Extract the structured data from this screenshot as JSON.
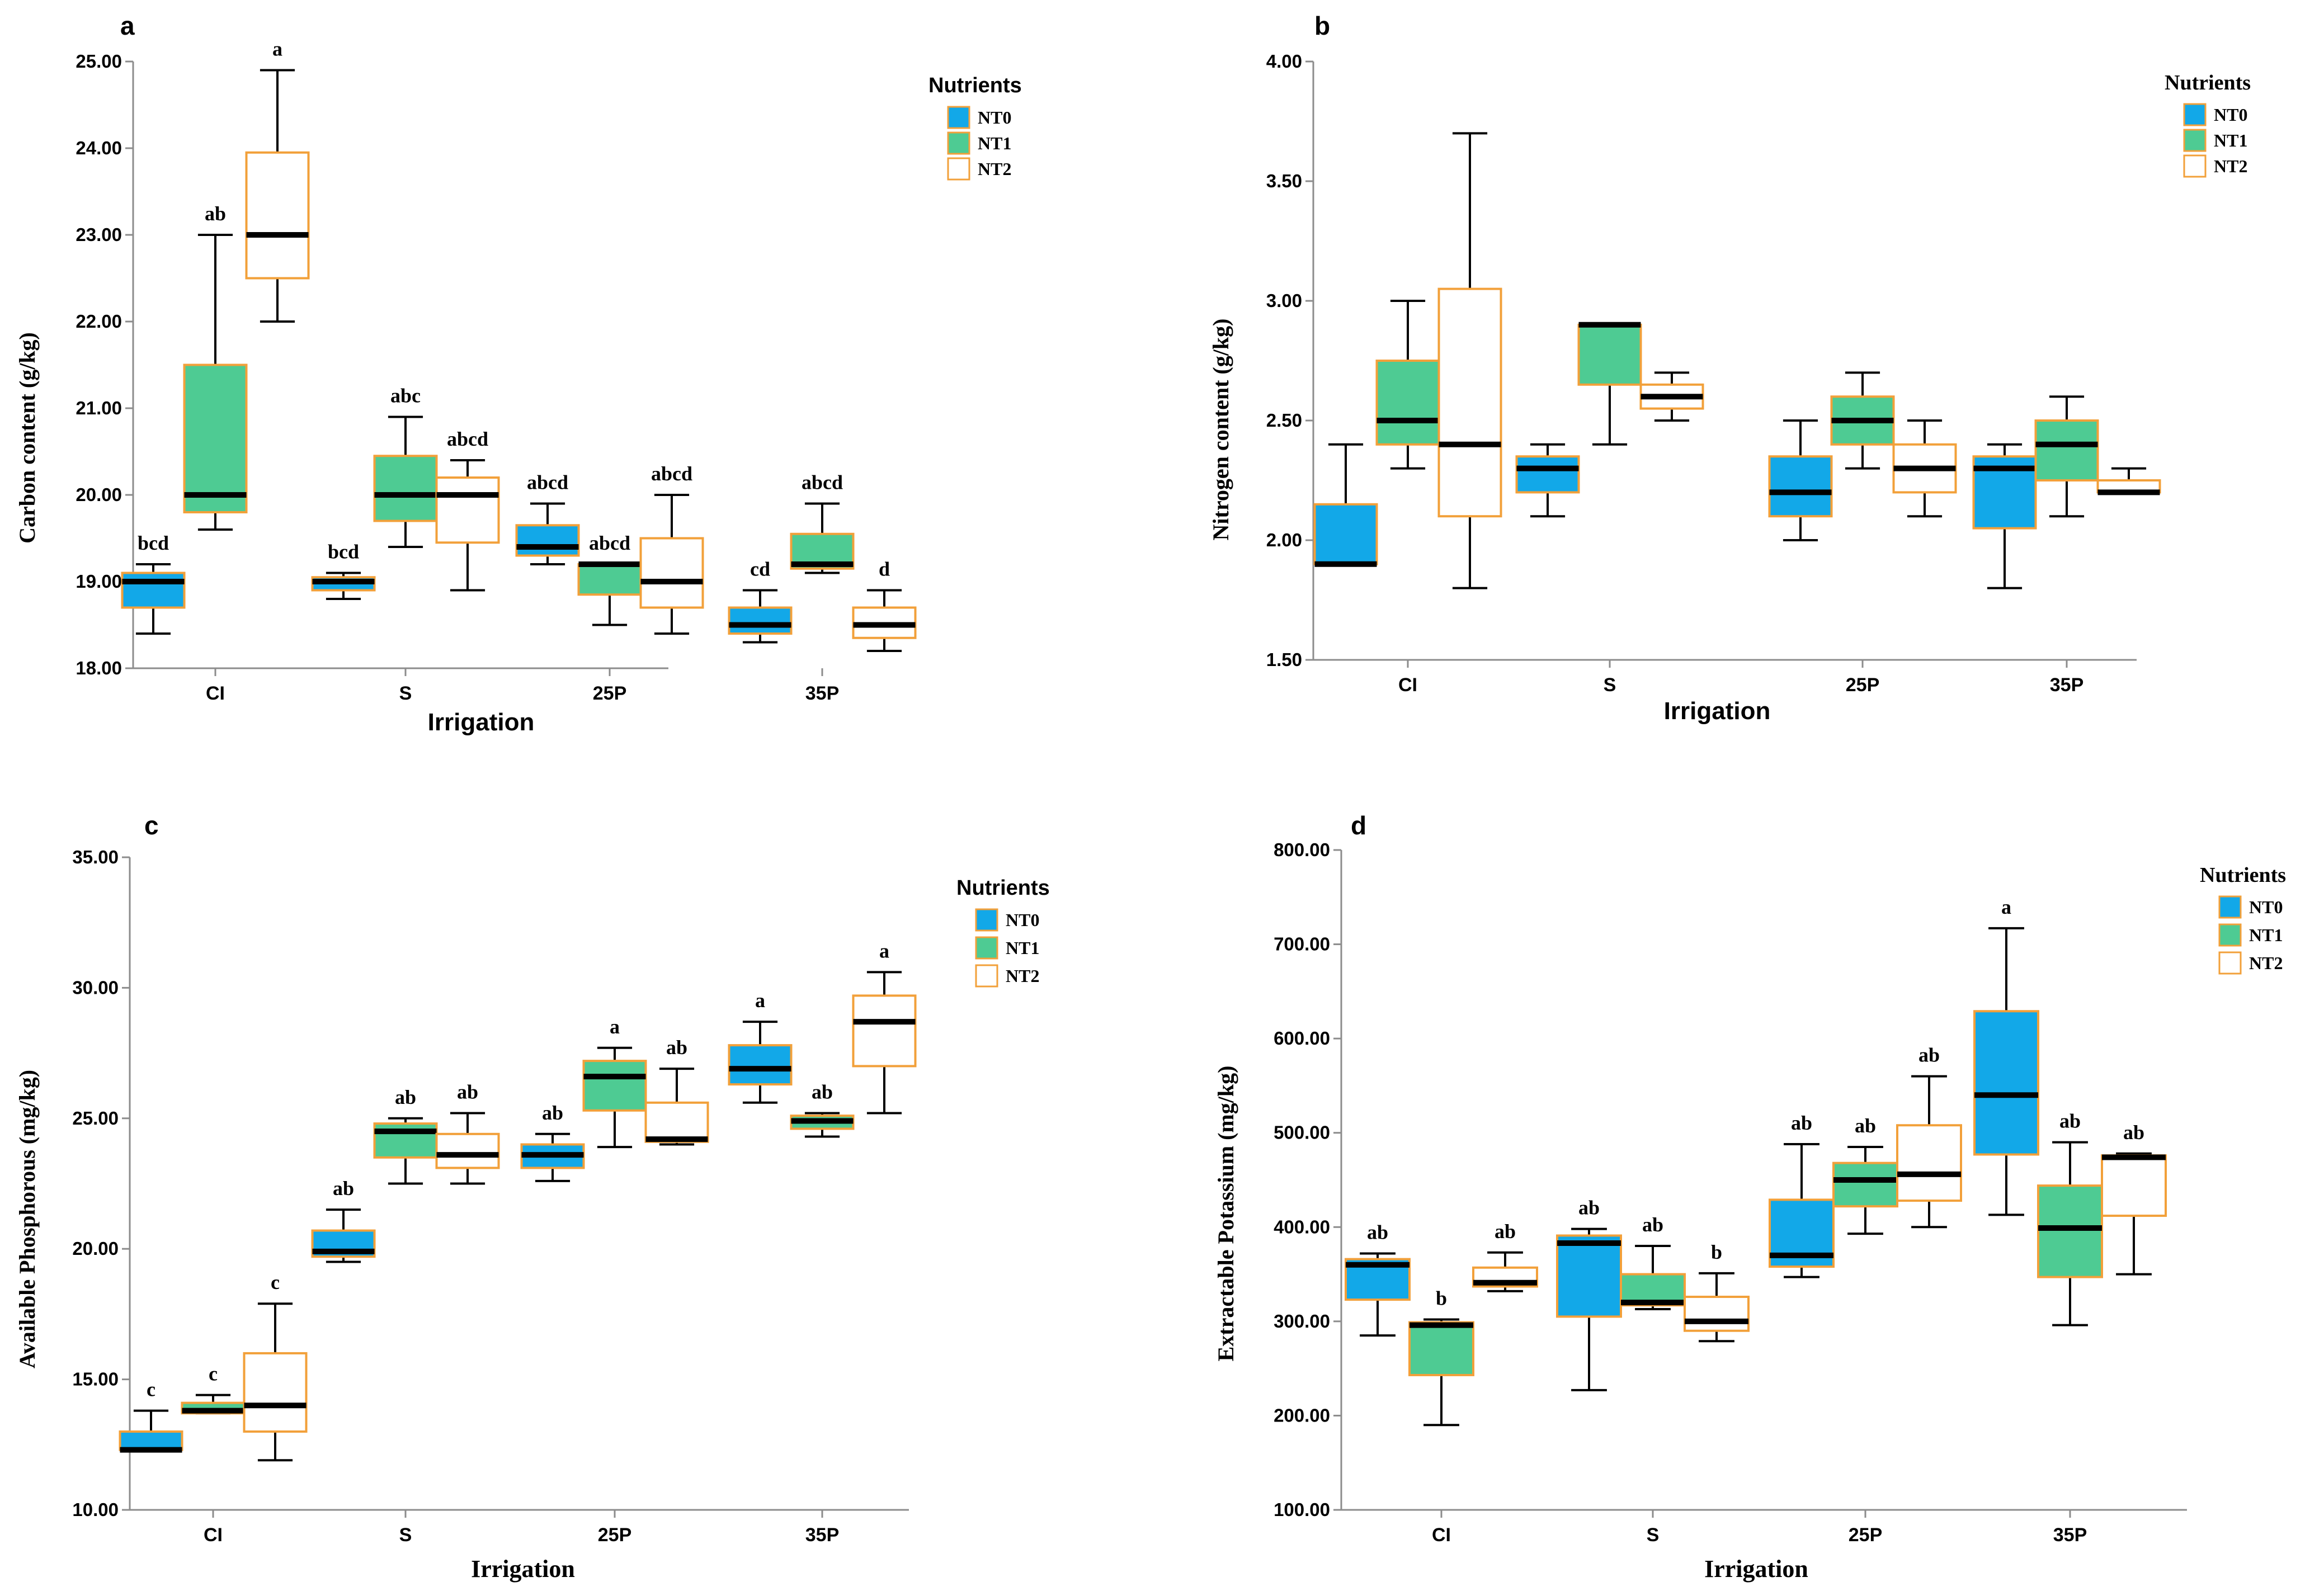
{
  "colors": {
    "NT0": "#12a8e8",
    "NT1": "#4ecb93",
    "NT2": "#ffffff",
    "border": "#f2a03a",
    "median": "#000000",
    "axis": "#8c8c8c"
  },
  "chart_data": [
    {
      "panel_id": "a",
      "type": "boxplot",
      "xlabel": "Irrigation",
      "ylabel": "Carbon content (g/kg)",
      "ylim": [
        18,
        25
      ],
      "yticks": [
        18,
        19,
        20,
        21,
        22,
        23,
        24,
        25
      ],
      "ytick_labels": [
        "18.00",
        "19.00",
        "20.00",
        "21.00",
        "22.00",
        "23.00",
        "24.00",
        "25.00"
      ],
      "categories": [
        "CI",
        "S",
        "25P",
        "35P"
      ],
      "legend": {
        "title": "Nutrients",
        "items": [
          "NT0",
          "NT1",
          "NT2"
        ],
        "position": "top-right"
      },
      "series": [
        {
          "name": "NT0",
          "boxes": [
            {
              "min": 18.4,
              "q1": 18.7,
              "median": 19.0,
              "q3": 19.1,
              "max": 19.2,
              "letter": "bcd"
            },
            {
              "min": 18.8,
              "q1": 18.9,
              "median": 19.0,
              "q3": 19.05,
              "max": 19.1,
              "letter": "bcd"
            },
            {
              "min": 19.2,
              "q1": 19.3,
              "median": 19.4,
              "q3": 19.65,
              "max": 19.9,
              "letter": "abcd"
            },
            {
              "min": 18.3,
              "q1": 18.4,
              "median": 18.5,
              "q3": 18.7,
              "max": 18.9,
              "letter": "cd"
            }
          ]
        },
        {
          "name": "NT1",
          "boxes": [
            {
              "min": 19.6,
              "q1": 19.8,
              "median": 20.0,
              "q3": 21.5,
              "max": 23.0,
              "letter": "ab"
            },
            {
              "min": 19.4,
              "q1": 19.7,
              "median": 20.0,
              "q3": 20.45,
              "max": 20.9,
              "letter": "abc"
            },
            {
              "min": 18.5,
              "q1": 18.85,
              "median": 19.2,
              "q3": 19.2,
              "max": 19.2,
              "letter": "abcd"
            },
            {
              "min": 19.1,
              "q1": 19.15,
              "median": 19.2,
              "q3": 19.55,
              "max": 19.9,
              "letter": "abcd"
            }
          ]
        },
        {
          "name": "NT2",
          "boxes": [
            {
              "min": 22.0,
              "q1": 22.5,
              "median": 23.0,
              "q3": 23.95,
              "max": 24.9,
              "letter": "a"
            },
            {
              "min": 18.9,
              "q1": 19.45,
              "median": 20.0,
              "q3": 20.2,
              "max": 20.4,
              "letter": "abcd"
            },
            {
              "min": 18.4,
              "q1": 18.7,
              "median": 19.0,
              "q3": 19.5,
              "max": 20.0,
              "letter": "abcd"
            },
            {
              "min": 18.2,
              "q1": 18.35,
              "median": 18.5,
              "q3": 18.7,
              "max": 18.9,
              "letter": "d"
            }
          ]
        }
      ]
    },
    {
      "panel_id": "b",
      "type": "boxplot",
      "xlabel": "Irrigation",
      "ylabel": "Nitrogen content (g/kg)",
      "ylim": [
        1.5,
        4.0
      ],
      "yticks": [
        1.5,
        2.0,
        2.5,
        3.0,
        3.5,
        4.0
      ],
      "ytick_labels": [
        "1.50",
        "2.00",
        "2.50",
        "3.00",
        "3.50",
        "4.00"
      ],
      "categories": [
        "CI",
        "S",
        "25P",
        "35P"
      ],
      "legend": {
        "title": "Nutrients",
        "items": [
          "NT0",
          "NT1",
          "NT2"
        ],
        "position": "top-right"
      },
      "series": [
        {
          "name": "NT0",
          "boxes": [
            {
              "min": 1.9,
              "q1": 1.9,
              "median": 1.9,
              "q3": 2.15,
              "max": 2.4
            },
            {
              "min": 2.1,
              "q1": 2.2,
              "median": 2.3,
              "q3": 2.35,
              "max": 2.4
            },
            {
              "min": 2.0,
              "q1": 2.1,
              "median": 2.2,
              "q3": 2.35,
              "max": 2.5
            },
            {
              "min": 1.8,
              "q1": 2.05,
              "median": 2.3,
              "q3": 2.35,
              "max": 2.4
            }
          ]
        },
        {
          "name": "NT1",
          "boxes": [
            {
              "min": 2.3,
              "q1": 2.4,
              "median": 2.5,
              "q3": 2.75,
              "max": 3.0
            },
            {
              "min": 2.4,
              "q1": 2.65,
              "median": 2.9,
              "q3": 2.9,
              "max": 2.9
            },
            {
              "min": 2.3,
              "q1": 2.4,
              "median": 2.5,
              "q3": 2.6,
              "max": 2.7
            },
            {
              "min": 2.1,
              "q1": 2.25,
              "median": 2.4,
              "q3": 2.5,
              "max": 2.6
            }
          ]
        },
        {
          "name": "NT2",
          "boxes": [
            {
              "min": 1.8,
              "q1": 2.1,
              "median": 2.4,
              "q3": 3.05,
              "max": 3.7
            },
            {
              "min": 2.5,
              "q1": 2.55,
              "median": 2.6,
              "q3": 2.65,
              "max": 2.7
            },
            {
              "min": 2.1,
              "q1": 2.2,
              "median": 2.3,
              "q3": 2.4,
              "max": 2.5
            },
            {
              "min": 2.2,
              "q1": 2.2,
              "median": 2.2,
              "q3": 2.25,
              "max": 2.3
            }
          ]
        }
      ]
    },
    {
      "panel_id": "c",
      "type": "boxplot",
      "xlabel": "Irrigation",
      "ylabel": "Available Phosphorous (mg/kg)",
      "ylim": [
        10,
        35
      ],
      "yticks": [
        10,
        15,
        20,
        25,
        30,
        35
      ],
      "ytick_labels": [
        "10.00",
        "15.00",
        "20.00",
        "25.00",
        "30.00",
        "35.00"
      ],
      "categories": [
        "CI",
        "S",
        "25P",
        "35P"
      ],
      "legend": {
        "title": "Nutrients",
        "items": [
          "NT0",
          "NT1",
          "NT2"
        ],
        "position": "top-right"
      },
      "series": [
        {
          "name": "NT0",
          "boxes": [
            {
              "min": 12.3,
              "q1": 12.3,
              "median": 12.3,
              "q3": 13.0,
              "max": 13.8,
              "letter": "c"
            },
            {
              "min": 19.5,
              "q1": 19.7,
              "median": 19.9,
              "q3": 20.7,
              "max": 21.5,
              "letter": "ab"
            },
            {
              "min": 22.6,
              "q1": 23.1,
              "median": 23.6,
              "q3": 24.0,
              "max": 24.4,
              "letter": "ab"
            },
            {
              "min": 25.6,
              "q1": 26.3,
              "median": 26.9,
              "q3": 27.8,
              "max": 28.7,
              "letter": "a"
            }
          ]
        },
        {
          "name": "NT1",
          "boxes": [
            {
              "min": 13.7,
              "q1": 13.7,
              "median": 13.8,
              "q3": 14.1,
              "max": 14.4,
              "letter": "c"
            },
            {
              "min": 22.5,
              "q1": 23.5,
              "median": 24.5,
              "q3": 24.8,
              "max": 25.0,
              "letter": "ab"
            },
            {
              "min": 23.9,
              "q1": 25.3,
              "median": 26.6,
              "q3": 27.2,
              "max": 27.7,
              "letter": "a"
            },
            {
              "min": 24.3,
              "q1": 24.6,
              "median": 24.9,
              "q3": 25.1,
              "max": 25.2,
              "letter": "ab"
            }
          ]
        },
        {
          "name": "NT2",
          "boxes": [
            {
              "min": 11.9,
              "q1": 13.0,
              "median": 14.0,
              "q3": 16.0,
              "max": 17.9,
              "letter": "c"
            },
            {
              "min": 22.5,
              "q1": 23.1,
              "median": 23.6,
              "q3": 24.4,
              "max": 25.2,
              "letter": "ab"
            },
            {
              "min": 24.0,
              "q1": 24.1,
              "median": 24.2,
              "q3": 25.6,
              "max": 26.9,
              "letter": "ab"
            },
            {
              "min": 25.2,
              "q1": 27.0,
              "median": 28.7,
              "q3": 29.7,
              "max": 30.6,
              "letter": "a"
            }
          ]
        }
      ]
    },
    {
      "panel_id": "d",
      "type": "boxplot",
      "xlabel": "Irrigation",
      "ylabel": "Extractable Potassium (mg/kg)",
      "ylim": [
        100,
        800
      ],
      "yticks": [
        100,
        200,
        300,
        400,
        500,
        600,
        700,
        800
      ],
      "ytick_labels": [
        "100.00",
        "200.00",
        "300.00",
        "400.00",
        "500.00",
        "600.00",
        "700.00",
        "800.00"
      ],
      "categories": [
        "CI",
        "S",
        "25P",
        "35P"
      ],
      "legend": {
        "title": "Nutrients",
        "items": [
          "NT0",
          "NT1",
          "NT2"
        ],
        "position": "top-right"
      },
      "series": [
        {
          "name": "NT0",
          "boxes": [
            {
              "min": 285,
              "q1": 323,
              "median": 360,
              "q3": 366,
              "max": 372,
              "letter": "ab"
            },
            {
              "min": 227,
              "q1": 305,
              "median": 383,
              "q3": 391,
              "max": 398,
              "letter": "ab"
            },
            {
              "min": 347,
              "q1": 358,
              "median": 370,
              "q3": 429,
              "max": 488,
              "letter": "ab"
            },
            {
              "min": 413,
              "q1": 477,
              "median": 540,
              "q3": 629,
              "max": 717,
              "letter": "a"
            }
          ]
        },
        {
          "name": "NT1",
          "boxes": [
            {
              "min": 190,
              "q1": 243,
              "median": 296,
              "q3": 299,
              "max": 302,
              "letter": "b"
            },
            {
              "min": 313,
              "q1": 317,
              "median": 320,
              "q3": 350,
              "max": 380,
              "letter": "ab"
            },
            {
              "min": 393,
              "q1": 422,
              "median": 450,
              "q3": 468,
              "max": 485,
              "letter": "ab"
            },
            {
              "min": 296,
              "q1": 347,
              "median": 399,
              "q3": 444,
              "max": 490,
              "letter": "ab"
            }
          ]
        },
        {
          "name": "NT2",
          "boxes": [
            {
              "min": 332,
              "q1": 337,
              "median": 341,
              "q3": 357,
              "max": 373,
              "letter": "ab"
            },
            {
              "min": 279,
              "q1": 290,
              "median": 300,
              "q3": 326,
              "max": 351,
              "letter": "b"
            },
            {
              "min": 400,
              "q1": 428,
              "median": 456,
              "q3": 508,
              "max": 560,
              "letter": "ab"
            },
            {
              "min": 350,
              "q1": 412,
              "median": 474,
              "q3": 476,
              "max": 478,
              "letter": "ab"
            }
          ]
        }
      ]
    }
  ]
}
